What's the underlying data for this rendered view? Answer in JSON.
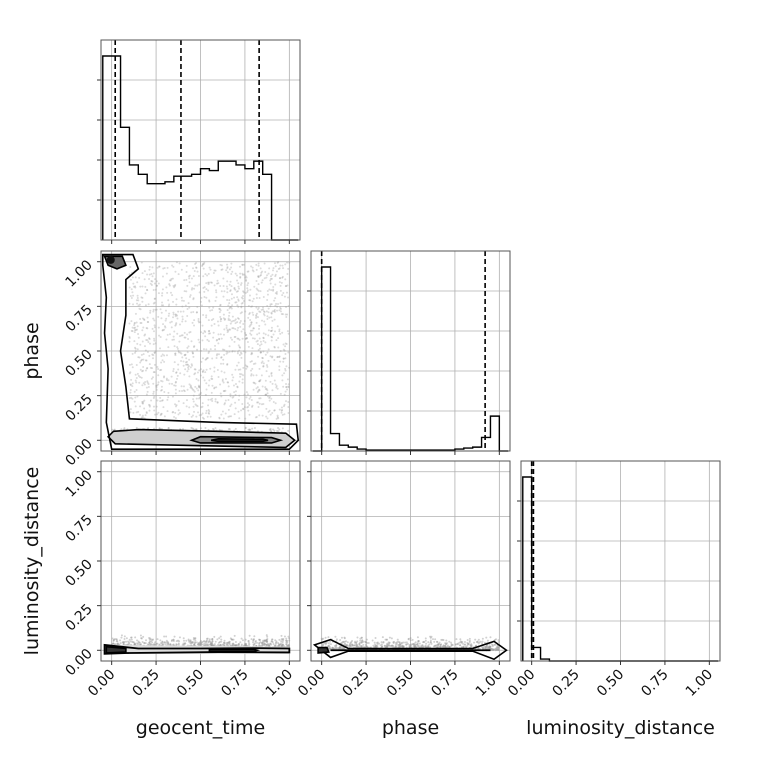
{
  "chart_data": {
    "type": "corner",
    "parameters": [
      "geocent_time",
      "phase",
      "luminosity_distance"
    ],
    "tick_values": [
      0.0,
      0.25,
      0.5,
      0.75,
      1.0
    ],
    "tick_labels": [
      "0.00",
      "0.25",
      "0.50",
      "0.75",
      "1.00"
    ],
    "axis_range": [
      -0.06,
      1.06
    ],
    "grid": true,
    "colors": {
      "line": "#000000",
      "grid": "#b0b0b0",
      "scatter": "#9a9a9a",
      "fill": "#cfcfcf"
    },
    "histograms": [
      {
        "name": "geocent_time",
        "bin_edges": [
          -0.05,
          0.0,
          0.05,
          0.1,
          0.15,
          0.2,
          0.25,
          0.3,
          0.35,
          0.4,
          0.45,
          0.5,
          0.55,
          0.6,
          0.65,
          0.7,
          0.75,
          0.8,
          0.85,
          0.9,
          0.95,
          1.0,
          1.05
        ],
        "counts": [
          0.98,
          0.98,
          0.6,
          0.4,
          0.35,
          0.3,
          0.3,
          0.31,
          0.34,
          0.34,
          0.35,
          0.38,
          0.37,
          0.42,
          0.42,
          0.4,
          0.38,
          0.42,
          0.35,
          0,
          0,
          0
        ],
        "quantiles": [
          0.02,
          0.39,
          0.83
        ]
      },
      {
        "name": "phase",
        "bin_edges": [
          -0.05,
          0.0,
          0.05,
          0.1,
          0.15,
          0.2,
          0.25,
          0.3,
          0.35,
          0.4,
          0.45,
          0.5,
          0.55,
          0.6,
          0.65,
          0.7,
          0.75,
          0.8,
          0.85,
          0.9,
          0.95,
          1.0,
          1.05
        ],
        "counts": [
          0,
          0.95,
          0.09,
          0.03,
          0.02,
          0.01,
          0.005,
          0.005,
          0.005,
          0.005,
          0.005,
          0.005,
          0.005,
          0.005,
          0.005,
          0.005,
          0.01,
          0.015,
          0.02,
          0.07,
          0.18,
          0
        ],
        "quantiles": [
          0.0,
          0.92
        ]
      },
      {
        "name": "luminosity_distance",
        "bin_edges": [
          -0.05,
          0.0,
          0.05,
          0.1,
          0.15,
          0.2,
          0.25,
          0.3,
          0.35,
          0.4,
          0.45,
          0.5,
          0.55,
          0.6,
          0.65,
          0.7,
          0.75,
          0.8,
          0.85,
          0.9,
          0.95,
          1.0,
          1.05
        ],
        "counts": [
          0.95,
          0.07,
          0.01,
          0,
          0,
          0,
          0,
          0,
          0,
          0,
          0,
          0,
          0,
          0,
          0,
          0,
          0,
          0,
          0,
          0,
          0,
          0
        ],
        "quantiles": [
          0.0,
          0.01
        ]
      }
    ],
    "joint": [
      {
        "x": "geocent_time",
        "y": "phase",
        "density_peaks": [
          [
            0.0,
            1.0
          ],
          [
            0.7,
            0.0
          ]
        ]
      },
      {
        "x": "geocent_time",
        "y": "luminosity_distance",
        "density_peaks": [
          [
            0.0,
            0.0
          ],
          [
            0.7,
            0.0
          ]
        ]
      },
      {
        "x": "phase",
        "y": "luminosity_distance",
        "density_peaks": [
          [
            0.0,
            0.0
          ],
          [
            1.0,
            0.0
          ]
        ]
      }
    ]
  }
}
